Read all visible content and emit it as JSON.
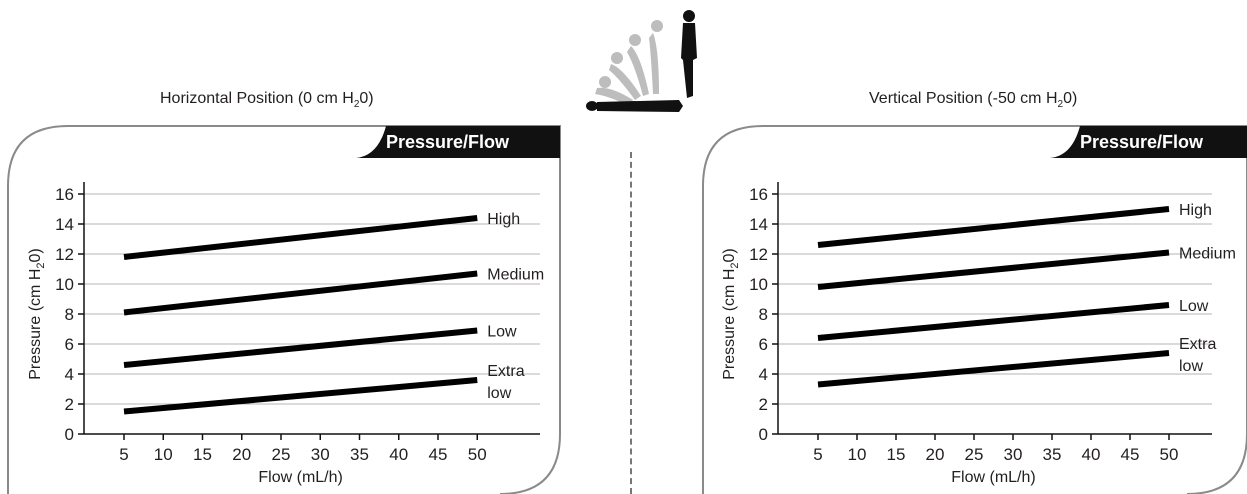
{
  "left_caption": {
    "prefix": "Horizontal Position (0 cm H",
    "sub": "2",
    "suffix": "0)"
  },
  "right_caption": {
    "prefix": "Vertical Position (-50 cm H",
    "sub": "2",
    "suffix": "0)"
  },
  "chart_data": [
    {
      "type": "line",
      "tab_label": "Pressure/Flow",
      "xlabel": "Flow (mL/h)",
      "ylabel": "Pressure (cm H2 0)",
      "ylabel_parts": {
        "prefix": "Pressure (cm H",
        "sub": "2",
        "suffix": "0)"
      },
      "x_ticks": [
        5,
        10,
        15,
        20,
        25,
        30,
        35,
        40,
        45,
        50
      ],
      "y_ticks": [
        0,
        2,
        4,
        6,
        8,
        10,
        12,
        14,
        16
      ],
      "xlim": [
        0,
        55
      ],
      "ylim": [
        0,
        17
      ],
      "grid": true,
      "series": [
        {
          "name": "High",
          "x": [
            5,
            50
          ],
          "values": [
            11.8,
            14.4
          ]
        },
        {
          "name": "Medium",
          "x": [
            5,
            50
          ],
          "values": [
            8.1,
            10.7
          ]
        },
        {
          "name": "Low",
          "x": [
            5,
            50
          ],
          "values": [
            4.6,
            6.9
          ]
        },
        {
          "name": "Extra low",
          "x": [
            5,
            50
          ],
          "values": [
            1.5,
            3.6
          ]
        }
      ]
    },
    {
      "type": "line",
      "tab_label": "Pressure/Flow",
      "xlabel": "Flow (mL/h)",
      "ylabel": "Pressure (cm H2 0)",
      "ylabel_parts": {
        "prefix": "Pressure (cm H",
        "sub": "2",
        "suffix": "0)"
      },
      "x_ticks": [
        5,
        10,
        15,
        20,
        25,
        30,
        35,
        40,
        45,
        50
      ],
      "y_ticks": [
        0,
        2,
        4,
        6,
        8,
        10,
        12,
        14,
        16
      ],
      "xlim": [
        0,
        55
      ],
      "ylim": [
        0,
        17
      ],
      "grid": true,
      "series": [
        {
          "name": "High",
          "x": [
            5,
            50
          ],
          "values": [
            12.6,
            15.0
          ]
        },
        {
          "name": "Medium",
          "x": [
            5,
            50
          ],
          "values": [
            9.8,
            12.1
          ]
        },
        {
          "name": "Low",
          "x": [
            5,
            50
          ],
          "values": [
            6.4,
            8.6
          ]
        },
        {
          "name": "Extra low",
          "x": [
            5,
            50
          ],
          "values": [
            3.3,
            5.4
          ]
        }
      ]
    }
  ]
}
